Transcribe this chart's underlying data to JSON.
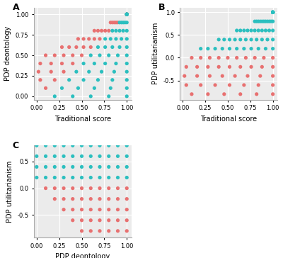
{
  "color_cyan": "#2BBFBF",
  "color_red": "#E87070",
  "panel_bg": "#EBEBEB",
  "dot_size": 14,
  "label_A": "A",
  "label_B": "B",
  "label_C": "C",
  "xlabel_A": "Traditional score",
  "ylabel_A": "PDP deontology",
  "xlabel_B": "Traditional score",
  "ylabel_B": "PDP utilitarianism",
  "xlabel_C": "PDP deontology",
  "ylabel_C": "PDP utilitarianism",
  "font_size_label": 7,
  "tick_size": 6
}
